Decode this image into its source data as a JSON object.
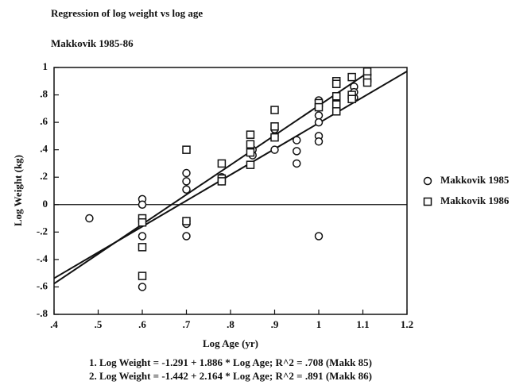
{
  "chart_data": {
    "type": "scatter",
    "title": "Regression of log weight vs log age",
    "subtitle": "Makkovik 1985-86",
    "x_label": "Log Age (yr)",
    "y_label": "Log Weight (kg)",
    "xlim": [
      0.4,
      1.2
    ],
    "ylim": [
      -0.8,
      1
    ],
    "xticks": [
      {
        "value": 0.4,
        "label": ".4"
      },
      {
        "value": 0.5,
        "label": ".5"
      },
      {
        "value": 0.6,
        "label": ".6"
      },
      {
        "value": 0.7,
        "label": ".7"
      },
      {
        "value": 0.8,
        "label": ".8"
      },
      {
        "value": 0.9,
        "label": ".9"
      },
      1,
      1.1,
      1.2
    ],
    "yticks": [
      {
        "value": -0.8,
        "label": "-.8"
      },
      {
        "value": -0.6,
        "label": "-.6"
      },
      {
        "value": -0.4,
        "label": "-.4"
      },
      {
        "value": -0.2,
        "label": "-.2"
      },
      0,
      {
        "value": 0.2,
        "label": ".2"
      },
      {
        "value": 0.4,
        "label": ".4"
      },
      {
        "value": 0.6,
        "label": ".6"
      },
      {
        "value": 0.8,
        "label": ".8"
      },
      1
    ],
    "reference_line": 0,
    "legend": "right",
    "series": [
      {
        "name": "Makkovik 1985",
        "marker": "circle",
        "color": "#111111",
        "x": [
          0.48,
          0.6,
          0.6,
          0.6,
          0.6,
          0.7,
          0.7,
          0.7,
          0.7,
          0.7,
          0.7,
          0.78,
          0.78,
          0.85,
          0.85,
          0.9,
          0.9,
          0.9,
          0.95,
          0.95,
          0.95,
          1.0,
          1.0,
          1.0,
          1.0,
          1.0,
          1.0,
          1.04,
          1.08,
          1.08,
          1.08,
          1.11
        ],
        "values": [
          -0.1,
          0.04,
          0,
          -0.23,
          -0.6,
          0.23,
          0.17,
          0.11,
          -0.12,
          -0.14,
          -0.23,
          0.2,
          0.17,
          0.4,
          0.36,
          0.4,
          0.5,
          0.55,
          0.47,
          0.39,
          0.3,
          0.76,
          0.65,
          0.6,
          0.5,
          0.46,
          -0.23,
          0.88,
          0.86,
          0.82,
          0.78,
          0.95
        ]
      },
      {
        "name": "Makkovik 1986",
        "marker": "square",
        "color": "#111111",
        "x": [
          0.6,
          0.6,
          0.6,
          0.6,
          0.7,
          0.7,
          0.78,
          0.78,
          0.78,
          0.845,
          0.845,
          0.845,
          0.845,
          0.9,
          0.9,
          0.9,
          1.0,
          1.0,
          1.04,
          1.04,
          1.04,
          1.04,
          1.04,
          1.075,
          1.075,
          1.075,
          1.11,
          1.11,
          1.11
        ],
        "values": [
          -0.1,
          -0.13,
          -0.31,
          -0.52,
          0.4,
          -0.12,
          0.3,
          0.19,
          0.17,
          0.51,
          0.44,
          0.38,
          0.29,
          0.69,
          0.57,
          0.49,
          0.74,
          0.71,
          0.9,
          0.88,
          0.79,
          0.73,
          0.68,
          0.93,
          0.8,
          0.77,
          0.97,
          0.92,
          0.89
        ]
      }
    ],
    "fit_lines": [
      {
        "x": [
          0.4,
          1.2
        ],
        "y": [
          -0.537,
          0.972
        ]
      },
      {
        "x": [
          0.4,
          1.11
        ],
        "y": [
          -0.576,
          0.96
        ]
      }
    ],
    "annotations": [
      "1. Log Weight = -1.291 + 1.886 * Log Age; R^2 = .708 (Makk 85)",
      "2. Log Weight = -1.442 + 2.164 * Log Age; R^2 = .891 (Makk 86)"
    ]
  }
}
